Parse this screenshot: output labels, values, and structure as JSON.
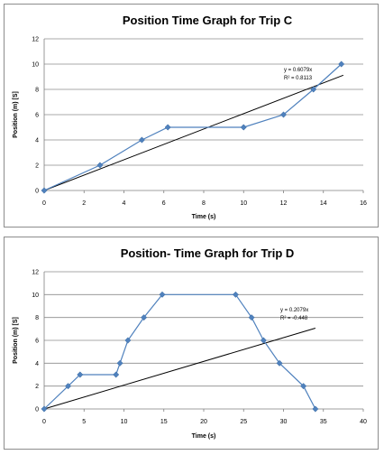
{
  "chart_data": [
    {
      "type": "scatter",
      "title": "Position Time Graph for Trip C",
      "xlabel": "Time (s)",
      "ylabel": "Position (m) [S]",
      "xlim": [
        0,
        16
      ],
      "ylim": [
        0,
        12
      ],
      "xticks": [
        0,
        2,
        4,
        6,
        8,
        10,
        12,
        14,
        16
      ],
      "yticks": [
        0,
        2,
        4,
        6,
        8,
        10,
        12
      ],
      "x_tick_labels": [
        "0",
        "2",
        "4",
        "6",
        "8",
        "10",
        "12",
        "14",
        "16"
      ],
      "y_tick_labels": [
        "0",
        "2",
        "4",
        "6",
        "8",
        "10",
        "12"
      ],
      "grid": "horizontal",
      "series": [
        {
          "x": [
            0,
            2.8,
            4.9,
            6.2,
            10,
            12,
            13.5,
            14.9
          ],
          "y": [
            0,
            2,
            4,
            5,
            5,
            6,
            8,
            10
          ],
          "color": "#4f81bd",
          "marker": "diamond"
        }
      ],
      "trendline": {
        "slope": 0.6079,
        "x_end": 15,
        "color": "#000000"
      },
      "annotations": [
        "y = 0.6079x",
        "R² = 0.8113"
      ]
    },
    {
      "type": "scatter",
      "title": "Position- Time Graph for Trip  D",
      "xlabel": "Time (s)",
      "ylabel": "Position (m) [S]",
      "xlim": [
        0,
        40
      ],
      "ylim": [
        0,
        12
      ],
      "xticks": [
        0,
        5,
        10,
        15,
        20,
        25,
        30,
        35,
        40
      ],
      "yticks": [
        0,
        2,
        4,
        6,
        8,
        10,
        12
      ],
      "x_tick_labels": [
        "0",
        "5",
        "10",
        "15",
        "20",
        "25",
        "30",
        "35",
        "40"
      ],
      "y_tick_labels": [
        "0",
        "2",
        "4",
        "6",
        "8",
        "10",
        "12"
      ],
      "grid": "horizontal",
      "series": [
        {
          "x": [
            0,
            3,
            4.5,
            9,
            9.5,
            10.5,
            12.5,
            14.8,
            24,
            26,
            27.5,
            29.5,
            32.5,
            34
          ],
          "y": [
            0,
            2,
            3,
            3,
            4,
            6,
            8,
            10,
            10,
            8,
            6,
            4,
            2,
            0
          ],
          "color": "#4f81bd",
          "marker": "diamond"
        }
      ],
      "trendline": {
        "slope": 0.2079,
        "x_end": 34,
        "color": "#000000"
      },
      "annotations": [
        "y = 0.2079x",
        "R² = -0.448"
      ]
    }
  ]
}
